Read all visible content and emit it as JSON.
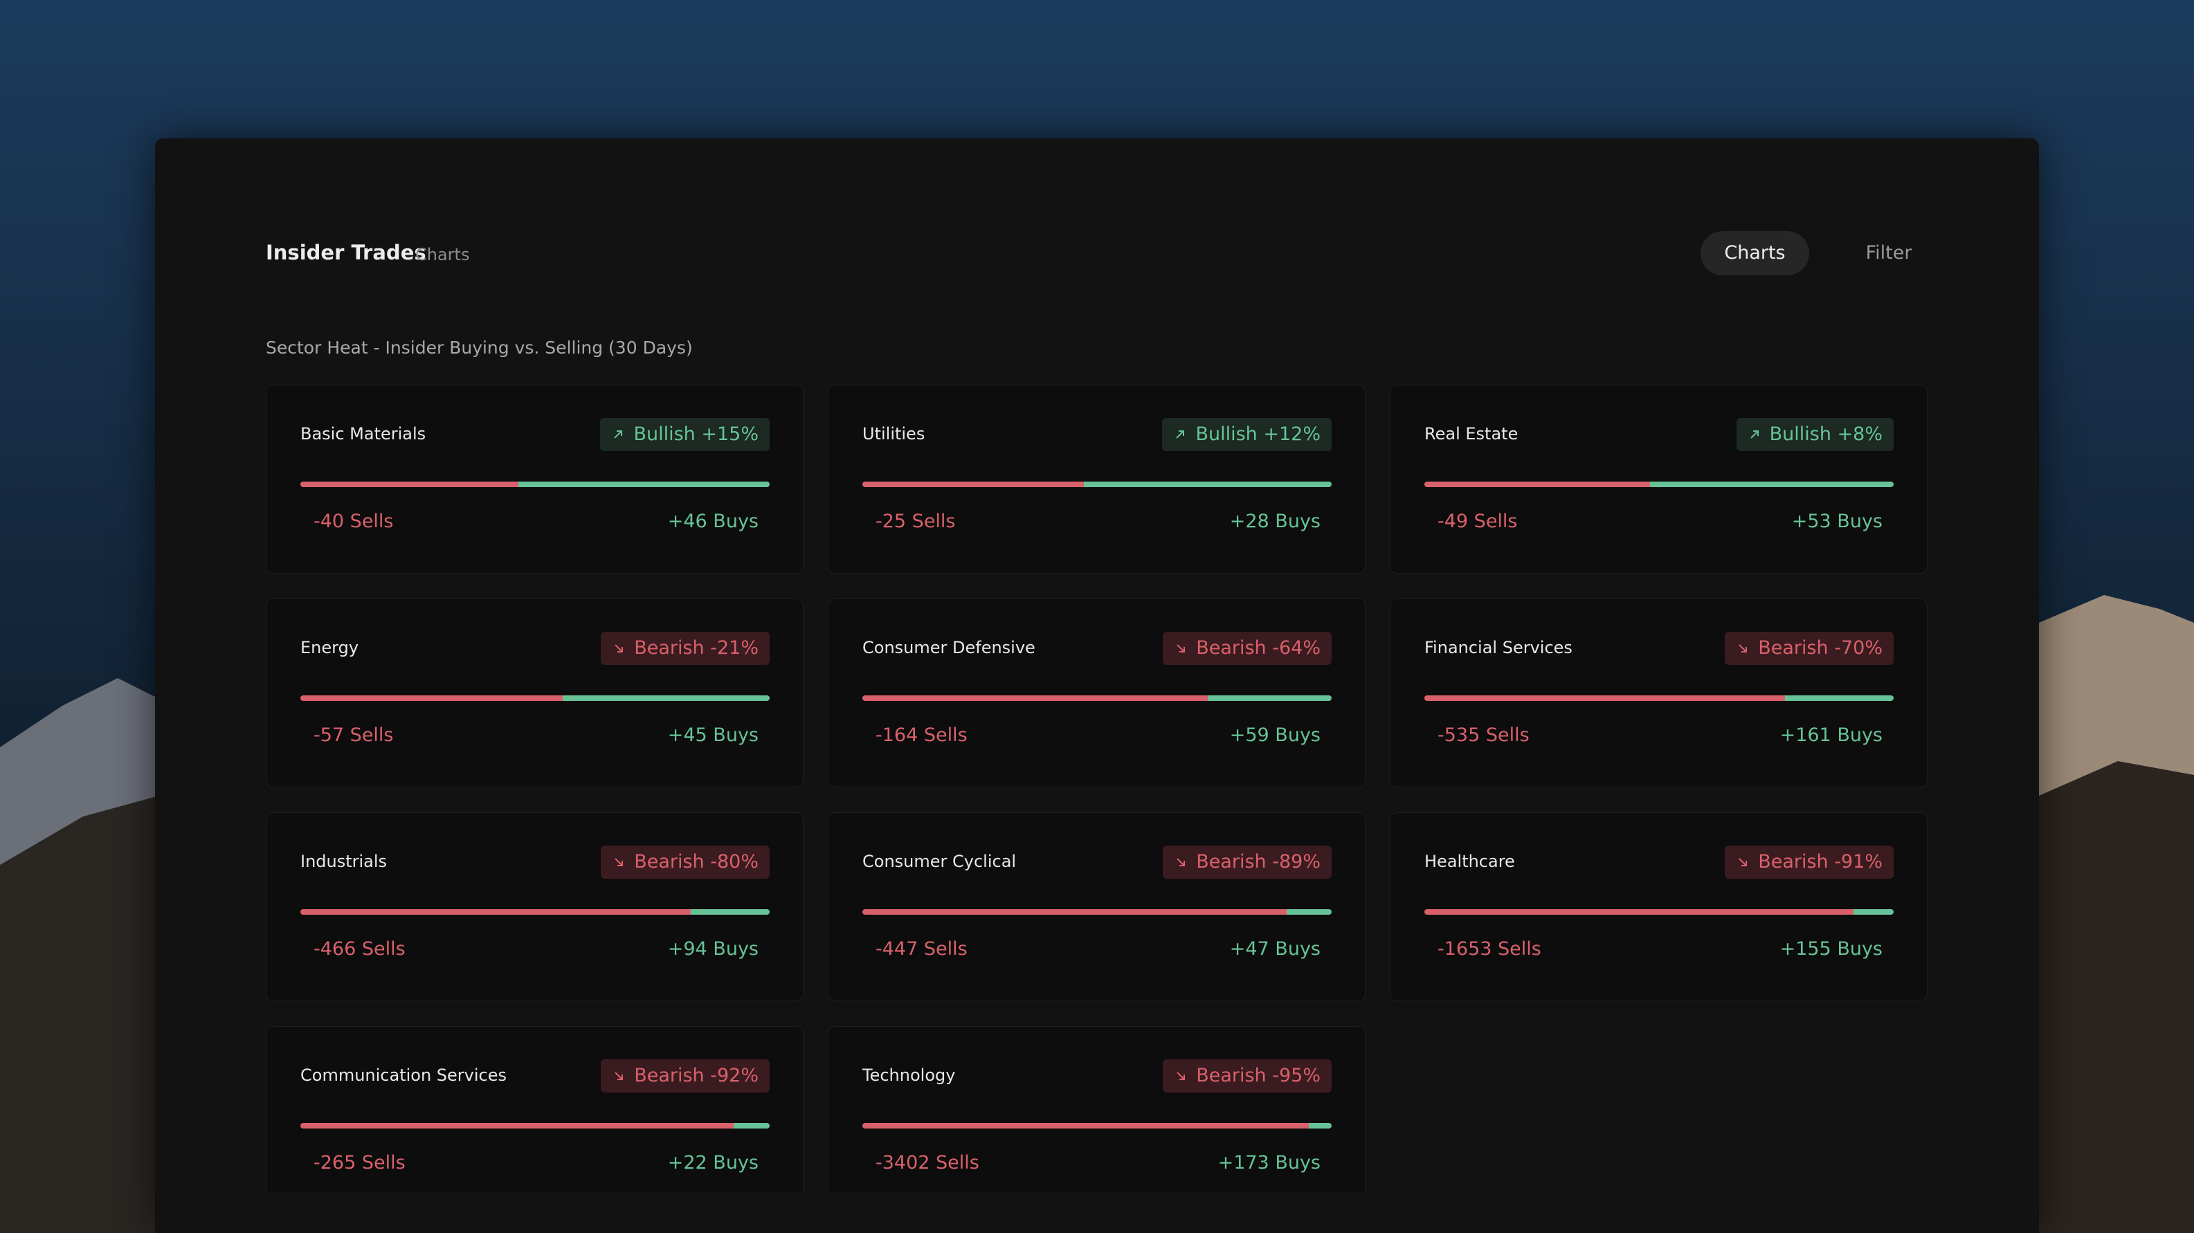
{
  "header": {
    "title": "Insider Trades",
    "subtitle": "Charts",
    "buttons": [
      "Charts",
      "Filter"
    ]
  },
  "section_title": "Sector Heat - Insider Buying vs. Selling (30 Days)",
  "colors": {
    "sells": "#d9616b",
    "buys": "#67c397"
  },
  "cards": [
    {
      "name": "Basic Materials",
      "badge": "Bullish +15%",
      "sells": 40,
      "sells_label": "-40 Sells",
      "buys": 46,
      "buys_label": "+46 Buys"
    },
    {
      "name": "Utilities",
      "badge": "Bullish +12%",
      "sells": 25,
      "sells_label": "-25 Sells",
      "buys": 28,
      "buys_label": "+28 Buys"
    },
    {
      "name": "Real Estate",
      "badge": "Bullish +8%",
      "sells": 49,
      "sells_label": "-49 Sells",
      "buys": 53,
      "buys_label": "+53 Buys"
    },
    {
      "name": "Energy",
      "badge": "Bearish -21%",
      "sells": 57,
      "sells_label": "-57 Sells",
      "buys": 45,
      "buys_label": "+45 Buys"
    },
    {
      "name": "Consumer Defensive",
      "badge": "Bearish -64%",
      "sells": 164,
      "sells_label": "-164 Sells",
      "buys": 59,
      "buys_label": "+59 Buys"
    },
    {
      "name": "Financial Services",
      "badge": "Bearish -70%",
      "sells": 535,
      "sells_label": "-535 Sells",
      "buys": 161,
      "buys_label": "+161 Buys"
    },
    {
      "name": "Industrials",
      "badge": "Bearish -80%",
      "sells": 466,
      "sells_label": "-466 Sells",
      "buys": 94,
      "buys_label": "+94 Buys"
    },
    {
      "name": "Consumer Cyclical",
      "badge": "Bearish -89%",
      "sells": 447,
      "sells_label": "-447 Sells",
      "buys": 47,
      "buys_label": "+47 Buys"
    },
    {
      "name": "Healthcare",
      "badge": "Bearish -91%",
      "sells": 1653,
      "sells_label": "-1653 Sells",
      "buys": 155,
      "buys_label": "+155 Buys"
    },
    {
      "name": "Communication Services",
      "badge": "Bearish -92%",
      "sells": 265,
      "sells_label": "-265 Sells",
      "buys": 22,
      "buys_label": "+22 Buys"
    },
    {
      "name": "Technology",
      "badge": "Bearish -95%",
      "sells": 3402,
      "sells_label": "-3402 Sells",
      "buys": 173,
      "buys_label": "+173 Buys"
    }
  ]
}
